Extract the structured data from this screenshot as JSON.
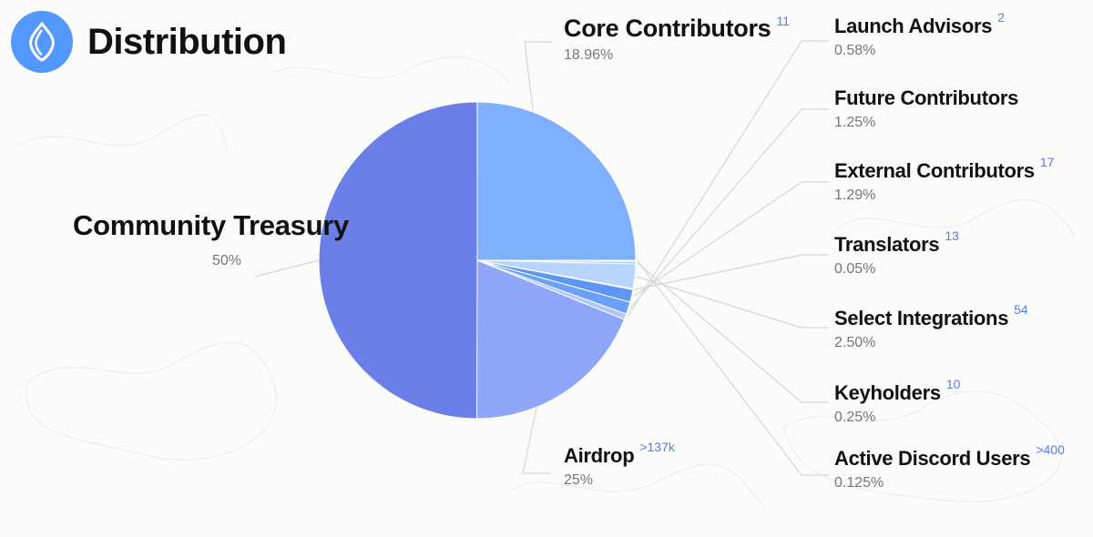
{
  "header": {
    "title": "Distribution",
    "logo_icon": "ens-logo-icon"
  },
  "colors": {
    "community_treasury": "#6b7fe9",
    "airdrop": "#7eb0fd",
    "core_contributors": "#8fa6fb",
    "launch_advisors": "#b3c4ff",
    "future_contributors": "#6aa0f8",
    "external_contributors": "#5f96f6",
    "translators": "#8fb8fb",
    "select_integrations": "#b8d4fd",
    "keyholders": "#a5c8fd",
    "active_discord_users": "#d5e6fe"
  },
  "chart_data": {
    "type": "pie",
    "title": "Distribution",
    "slices": [
      {
        "label": "Community Treasury",
        "value": 50,
        "value_label": "50%",
        "count": ""
      },
      {
        "label": "Airdrop",
        "value": 25,
        "value_label": "25%",
        "count": ">137k"
      },
      {
        "label": "Active Discord Users",
        "value": 0.125,
        "value_label": "0.125%",
        "count": ">400"
      },
      {
        "label": "Keyholders",
        "value": 0.25,
        "value_label": "0.25%",
        "count": "10"
      },
      {
        "label": "Select Integrations",
        "value": 2.5,
        "value_label": "2.50%",
        "count": "54"
      },
      {
        "label": "Translators",
        "value": 0.05,
        "value_label": "0.05%",
        "count": "13"
      },
      {
        "label": "External Contributors",
        "value": 1.29,
        "value_label": "1.29%",
        "count": "17"
      },
      {
        "label": "Future Contributors",
        "value": 1.25,
        "value_label": "1.25%",
        "count": ""
      },
      {
        "label": "Launch Advisors",
        "value": 0.58,
        "value_label": "0.58%",
        "count": "2"
      },
      {
        "label": "Core Contributors",
        "value": 18.96,
        "value_label": "18.96%",
        "count": "11"
      }
    ]
  }
}
